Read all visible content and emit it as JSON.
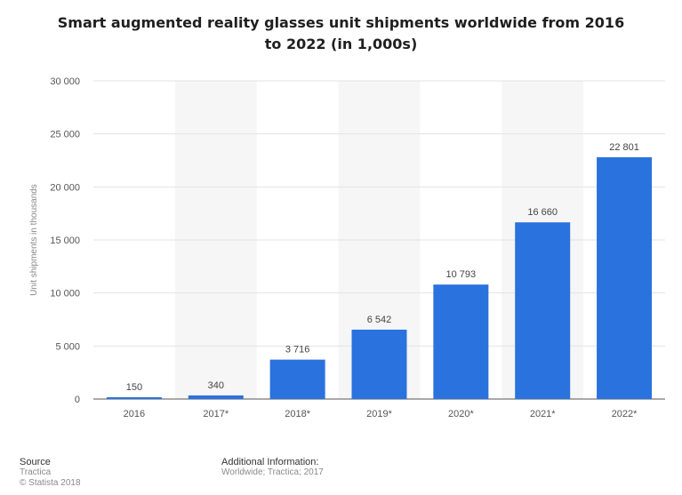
{
  "chart_data": {
    "type": "bar",
    "title_line1": "Smart augmented reality glasses unit shipments worldwide from 2016",
    "title_line2": "to 2022 (in 1,000s)",
    "ylabel": "Unit shipments in thousands",
    "xlabel": "",
    "categories": [
      "2016",
      "2017*",
      "2018*",
      "2019*",
      "2020*",
      "2021*",
      "2022*"
    ],
    "values": [
      150,
      340,
      3716,
      6542,
      10793,
      16660,
      22801
    ],
    "value_labels": [
      "150",
      "340",
      "3 716",
      "6 542",
      "10 793",
      "16 660",
      "22 801"
    ],
    "ylim": [
      0,
      30000
    ],
    "yticks": [
      0,
      5000,
      10000,
      15000,
      20000,
      25000,
      30000
    ],
    "ytick_labels": [
      "0",
      "5 000",
      "10 000",
      "15 000",
      "20 000",
      "25 000",
      "30 000"
    ],
    "grid": true,
    "bar_color": "#2a72de"
  },
  "footer": {
    "source_head": "Source",
    "source_line1": "Tractica",
    "source_line2": "© Statista 2018",
    "info_head": "Additional Information:",
    "info_line": "Worldwide; Tractica; 2017"
  }
}
